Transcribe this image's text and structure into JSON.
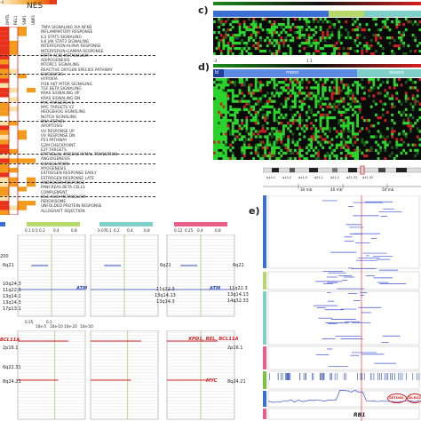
{
  "nes_label": "NES",
  "nes_scale": [
    "0",
    "-4"
  ],
  "gsea_columns": [
    "DMTL",
    "REL1",
    "SNP1",
    "UBP1"
  ],
  "gene_sets": [
    "TNFA SIGNALING VIA NFKB",
    "INFLAMMATORY RESPONSE",
    "IL2 STAT5 SIGNALING",
    "IL6 JAK STAT3 SIGNALING",
    "INTERFERON-ALPHA RESPONSE",
    "INTERFERON-GAMMA RESPONSE",
    "FATTY ACID METABOLISM",
    "ADIPOGENESIS",
    "MTORC1 SIGNALING",
    "REACTIVE OXYGEN SPECIES PATHWAY",
    "GLYCOLYSIS",
    "HYPOXIA",
    "PI3K AKT MTOR SIGNALING",
    "TGF BETA SIGNALING",
    "KRAS SIGNALING UP",
    "KRAS SIGNALING DN",
    "MYC TARGETS V1",
    "MYC TARGETS V2",
    "HEDGEHOG SIGNALING",
    "NOTCH SIGNALING",
    "DNA REPAIR",
    "APOPTOSIS",
    "UV RESPONSE UP",
    "UV RESPONSE DN",
    "P53 PATHWAY",
    "G2M CHECKPOINT",
    "E2F TARGETS",
    "EPITHELIAL MESENCHYMAL TRANSITION",
    "ANGIOGENESIS",
    "COAGULATION",
    "MYOGENESIS",
    "ESTROGEN RESPONSE EARLY",
    "ESTROGEN RESPONSE LATE",
    "ANDROGEN RESPONSE",
    "PANCREAS BETA CELLS",
    "COMPLEMENT",
    "BILE ACID METABOLISM",
    "PEROXISOME",
    "UNFOLDED PROTEIN RESPONSE",
    "ALLOGRAFT REJECTION"
  ],
  "panel_c": {
    "label": "c)",
    "scale": [
      "-2",
      "2"
    ]
  },
  "panel_d": {
    "label": "d)",
    "scale_left": "-3",
    "scale_right": "1.1",
    "groups": [
      "bl",
      "mono",
      "absent"
    ]
  },
  "panel_e": {
    "label": "e)",
    "chrom_bands": [
      "q14.1",
      "q14.2",
      "q14.3",
      "q21.1",
      "q21.2",
      "q21.31",
      "q21.32"
    ],
    "scale_labels": [
      "30 mb",
      "40 mb",
      "50 mb"
    ],
    "gene_label": "RB1",
    "circled_genes": [
      "SETDB2",
      "DLEU2"
    ]
  },
  "cnv": {
    "top_ticks_1": [
      "0.1",
      "0.5",
      "0.2",
      "0.4",
      "0.8"
    ],
    "top_ticks_2": [
      "0.07",
      "0.1",
      "0.2",
      "0.4",
      "0.8"
    ],
    "top_ticks_3": [
      "0.12",
      "0.25",
      "0.4",
      "0.8"
    ],
    "bottom_ticks": [
      "0.25",
      "0.1",
      "10e-5",
      "10e-10",
      "10e-20",
      "10e-50"
    ],
    "left_top_labels": [
      "200",
      "6q21",
      "10q24.3",
      "11q22.3",
      "13q14.1",
      "13q14.3",
      "17p13.1"
    ],
    "mid_top_labels": [
      "6q21",
      "11q22.3",
      "13q14.13",
      "13q14.3"
    ],
    "right_top_labels": [
      "6q21",
      "11q22.3",
      "13q14.13",
      "14q32.33"
    ],
    "left_bottom_labels": [
      "BCL11A",
      "2p16.1",
      "6q22.31",
      "8q24.21"
    ],
    "mid_bottom_labels": [
      "2p16.1",
      "8q24.21"
    ],
    "genes_top": [
      "ATM",
      "ATM"
    ],
    "genes_bottom": [
      "XPO1, REL, BCL11A",
      "MYC"
    ]
  },
  "colors": {
    "heat_high": "#e8321c",
    "heat_mid": "#f39a1c",
    "heat_low": "#fbe0a8",
    "blue": "#3b6fd4",
    "lightgreen": "#b5d96a",
    "teal": "#7fd0c8",
    "pink": "#e8608a",
    "red_accent": "#d42020"
  }
}
